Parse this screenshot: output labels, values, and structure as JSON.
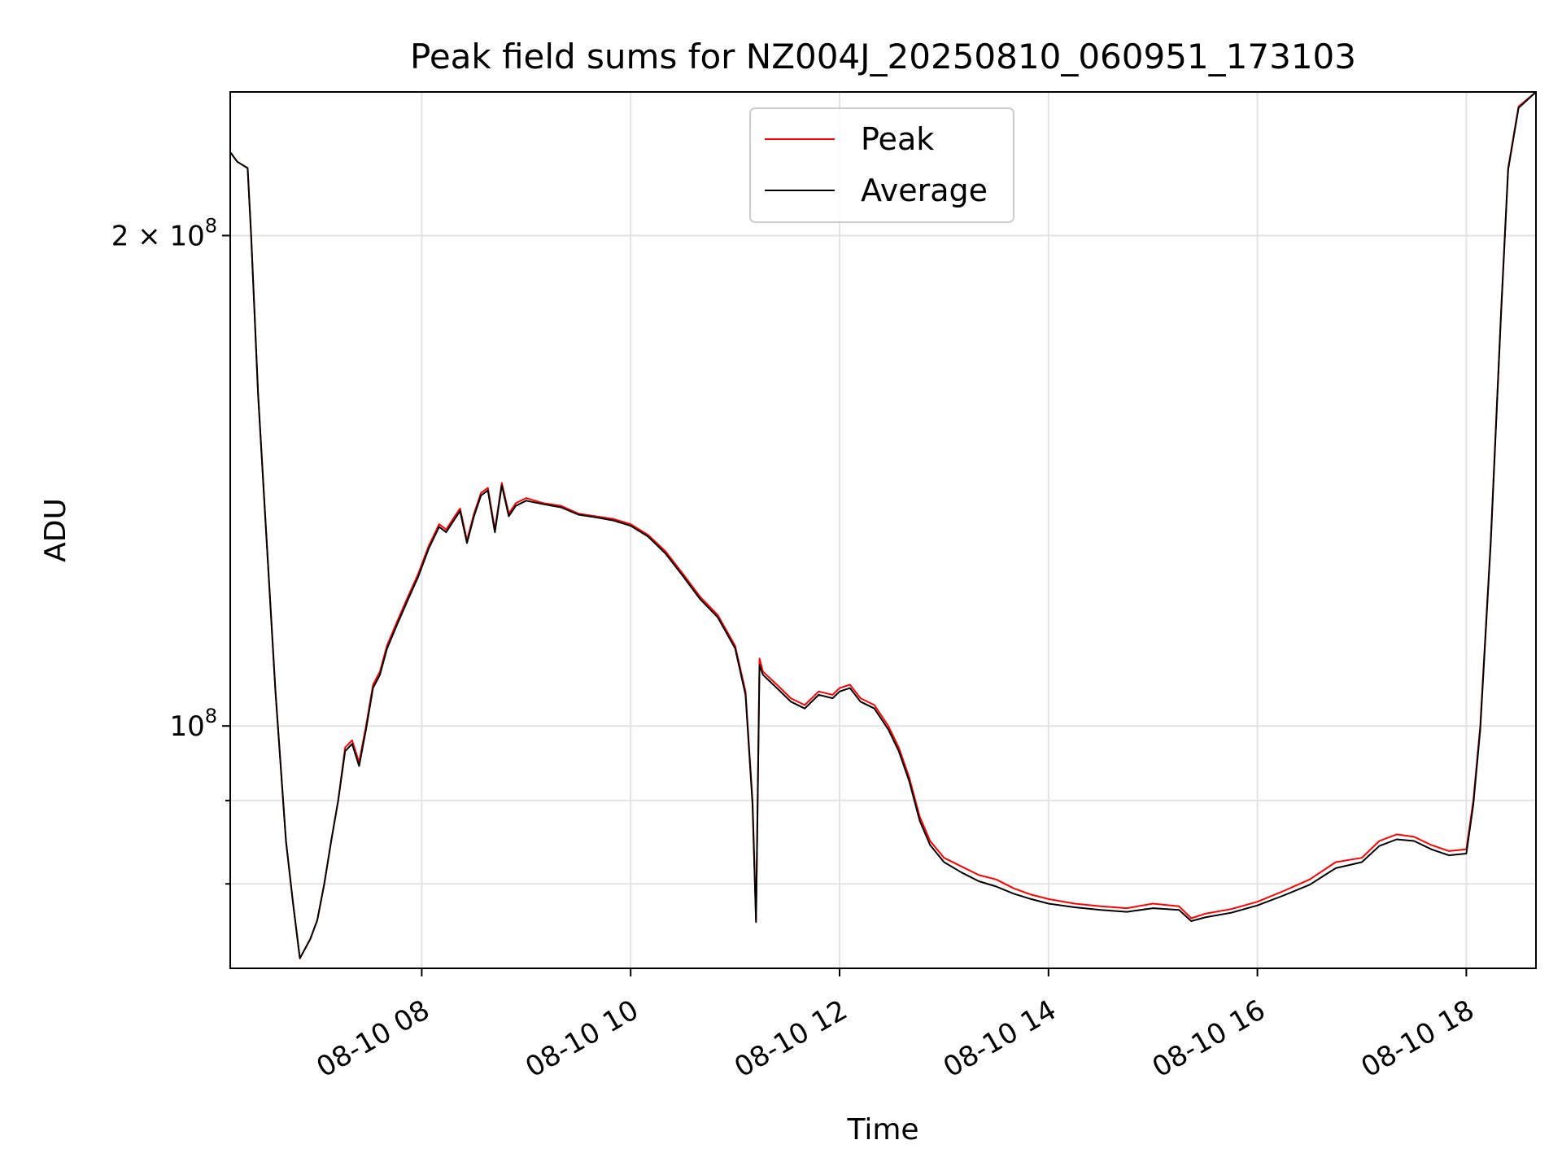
{
  "chart_data": {
    "type": "line",
    "title": "Peak field sums for NZ004J_20250810_060951_173103",
    "xlabel": "Time",
    "ylabel": "ADU",
    "x_scale": "time",
    "y_scale": "log",
    "xlim": [
      "08-10 06:10",
      "08-10 18:40"
    ],
    "ylim": [
      71000000,
      245000000
    ],
    "grid": true,
    "legend_position": "upper-center",
    "x_ticks": [
      "08-10 08",
      "08-10 10",
      "08-10 12",
      "08-10 14",
      "08-10 16",
      "08-10 18"
    ],
    "x_tick_values": [
      "08-10 08:00",
      "08-10 10:00",
      "08-10 12:00",
      "08-10 14:00",
      "08-10 16:00",
      "08-10 18:00"
    ],
    "y_ticks": [
      {
        "value": 100000000,
        "base": "10",
        "exp": "8",
        "prefix": ""
      },
      {
        "value": 200000000,
        "base": "10",
        "exp": "8",
        "prefix": "2 × "
      }
    ],
    "y_minor_ticks": [
      80000000,
      90000000
    ],
    "series": [
      {
        "name": "Peak",
        "color": "#ff0000",
        "points": [
          [
            "08-10 06:10",
            225000000
          ],
          [
            "08-10 06:14",
            222000000
          ],
          [
            "08-10 06:20",
            220000000
          ],
          [
            "08-10 06:22",
            200000000
          ],
          [
            "08-10 06:26",
            160000000
          ],
          [
            "08-10 06:30",
            135000000
          ],
          [
            "08-10 06:36",
            105000000
          ],
          [
            "08-10 06:42",
            85000000
          ],
          [
            "08-10 06:46",
            78000000
          ],
          [
            "08-10 06:50",
            72000000
          ],
          [
            "08-10 06:56",
            74000000
          ],
          [
            "08-10 07:00",
            76000000
          ],
          [
            "08-10 07:04",
            80000000
          ],
          [
            "08-10 07:08",
            85000000
          ],
          [
            "08-10 07:12",
            90000000
          ],
          [
            "08-10 07:16",
            97000000
          ],
          [
            "08-10 07:20",
            98000000
          ],
          [
            "08-10 07:24",
            95000000
          ],
          [
            "08-10 07:28",
            100000000
          ],
          [
            "08-10 07:32",
            106000000
          ],
          [
            "08-10 07:36",
            108000000
          ],
          [
            "08-10 07:40",
            112000000
          ],
          [
            "08-10 07:46",
            116000000
          ],
          [
            "08-10 07:52",
            120000000
          ],
          [
            "08-10 07:58",
            124000000
          ],
          [
            "08-10 08:04",
            129000000
          ],
          [
            "08-10 08:10",
            133000000
          ],
          [
            "08-10 08:14",
            132000000
          ],
          [
            "08-10 08:18",
            134000000
          ],
          [
            "08-10 08:22",
            136000000
          ],
          [
            "08-10 08:26",
            130000000
          ],
          [
            "08-10 08:30",
            135000000
          ],
          [
            "08-10 08:34",
            139000000
          ],
          [
            "08-10 08:38",
            140000000
          ],
          [
            "08-10 08:42",
            132000000
          ],
          [
            "08-10 08:46",
            141000000
          ],
          [
            "08-10 08:50",
            135000000
          ],
          [
            "08-10 08:54",
            137000000
          ],
          [
            "08-10 09:00",
            138000000
          ],
          [
            "08-10 09:10",
            137000000
          ],
          [
            "08-10 09:20",
            136500000
          ],
          [
            "08-10 09:30",
            135000000
          ],
          [
            "08-10 09:40",
            134500000
          ],
          [
            "08-10 09:50",
            134000000
          ],
          [
            "08-10 10:00",
            133000000
          ],
          [
            "08-10 10:10",
            131000000
          ],
          [
            "08-10 10:20",
            128000000
          ],
          [
            "08-10 10:30",
            124000000
          ],
          [
            "08-10 10:40",
            120000000
          ],
          [
            "08-10 10:50",
            117000000
          ],
          [
            "08-10 11:00",
            112000000
          ],
          [
            "08-10 11:06",
            105000000
          ],
          [
            "08-10 11:10",
            90000000
          ],
          [
            "08-10 11:12",
            76000000
          ],
          [
            "08-10 11:14",
            110000000
          ],
          [
            "08-10 11:16",
            108000000
          ],
          [
            "08-10 11:24",
            106000000
          ],
          [
            "08-10 11:32",
            104000000
          ],
          [
            "08-10 11:40",
            103000000
          ],
          [
            "08-10 11:48",
            105000000
          ],
          [
            "08-10 11:56",
            104500000
          ],
          [
            "08-10 12:00",
            105500000
          ],
          [
            "08-10 12:06",
            106000000
          ],
          [
            "08-10 12:12",
            104000000
          ],
          [
            "08-10 12:20",
            103000000
          ],
          [
            "08-10 12:28",
            100000000
          ],
          [
            "08-10 12:34",
            97000000
          ],
          [
            "08-10 12:40",
            93000000
          ],
          [
            "08-10 12:46",
            88000000
          ],
          [
            "08-10 12:52",
            85000000
          ],
          [
            "08-10 13:00",
            83000000
          ],
          [
            "08-10 13:10",
            82000000
          ],
          [
            "08-10 13:20",
            81000000
          ],
          [
            "08-10 13:30",
            80500000
          ],
          [
            "08-10 13:40",
            79500000
          ],
          [
            "08-10 13:50",
            78800000
          ],
          [
            "08-10 14:00",
            78300000
          ],
          [
            "08-10 14:15",
            77800000
          ],
          [
            "08-10 14:30",
            77500000
          ],
          [
            "08-10 14:45",
            77300000
          ],
          [
            "08-10 15:00",
            77800000
          ],
          [
            "08-10 15:15",
            77500000
          ],
          [
            "08-10 15:22",
            76200000
          ],
          [
            "08-10 15:30",
            76700000
          ],
          [
            "08-10 15:45",
            77200000
          ],
          [
            "08-10 16:00",
            78000000
          ],
          [
            "08-10 16:15",
            79200000
          ],
          [
            "08-10 16:30",
            80500000
          ],
          [
            "08-10 16:45",
            82500000
          ],
          [
            "08-10 17:00",
            83000000
          ],
          [
            "08-10 17:10",
            85000000
          ],
          [
            "08-10 17:20",
            85800000
          ],
          [
            "08-10 17:30",
            85500000
          ],
          [
            "08-10 17:40",
            84500000
          ],
          [
            "08-10 17:50",
            83800000
          ],
          [
            "08-10 18:00",
            84000000
          ],
          [
            "08-10 18:04",
            90000000
          ],
          [
            "08-10 18:08",
            100000000
          ],
          [
            "08-10 18:14",
            130000000
          ],
          [
            "08-10 18:20",
            180000000
          ],
          [
            "08-10 18:24",
            220000000
          ],
          [
            "08-10 18:30",
            240000000
          ],
          [
            "08-10 18:40",
            245000000
          ]
        ]
      },
      {
        "name": "Average",
        "color": "#000000",
        "points": [
          [
            "08-10 06:10",
            225000000
          ],
          [
            "08-10 06:14",
            222000000
          ],
          [
            "08-10 06:20",
            220000000
          ],
          [
            "08-10 06:22",
            200000000
          ],
          [
            "08-10 06:26",
            160000000
          ],
          [
            "08-10 06:30",
            135000000
          ],
          [
            "08-10 06:36",
            105000000
          ],
          [
            "08-10 06:42",
            85000000
          ],
          [
            "08-10 06:46",
            78000000
          ],
          [
            "08-10 06:50",
            72000000
          ],
          [
            "08-10 06:56",
            74000000
          ],
          [
            "08-10 07:00",
            76000000
          ],
          [
            "08-10 07:04",
            80000000
          ],
          [
            "08-10 07:08",
            85000000
          ],
          [
            "08-10 07:12",
            90000000
          ],
          [
            "08-10 07:16",
            96500000
          ],
          [
            "08-10 07:20",
            97500000
          ],
          [
            "08-10 07:24",
            94500000
          ],
          [
            "08-10 07:28",
            99500000
          ],
          [
            "08-10 07:32",
            105500000
          ],
          [
            "08-10 07:36",
            107500000
          ],
          [
            "08-10 07:40",
            111500000
          ],
          [
            "08-10 07:46",
            115500000
          ],
          [
            "08-10 07:52",
            119500000
          ],
          [
            "08-10 07:58",
            123500000
          ],
          [
            "08-10 08:04",
            128500000
          ],
          [
            "08-10 08:10",
            132500000
          ],
          [
            "08-10 08:14",
            131500000
          ],
          [
            "08-10 08:18",
            133500000
          ],
          [
            "08-10 08:22",
            135500000
          ],
          [
            "08-10 08:26",
            129500000
          ],
          [
            "08-10 08:30",
            134500000
          ],
          [
            "08-10 08:34",
            138500000
          ],
          [
            "08-10 08:38",
            139500000
          ],
          [
            "08-10 08:42",
            131500000
          ],
          [
            "08-10 08:46",
            140500000
          ],
          [
            "08-10 08:50",
            134500000
          ],
          [
            "08-10 08:54",
            136500000
          ],
          [
            "08-10 09:00",
            137500000
          ],
          [
            "08-10 09:10",
            136800000
          ],
          [
            "08-10 09:20",
            136200000
          ],
          [
            "08-10 09:30",
            134800000
          ],
          [
            "08-10 09:40",
            134300000
          ],
          [
            "08-10 09:50",
            133700000
          ],
          [
            "08-10 10:00",
            132700000
          ],
          [
            "08-10 10:10",
            130700000
          ],
          [
            "08-10 10:20",
            127600000
          ],
          [
            "08-10 10:30",
            123600000
          ],
          [
            "08-10 10:40",
            119600000
          ],
          [
            "08-10 10:50",
            116600000
          ],
          [
            "08-10 11:00",
            111600000
          ],
          [
            "08-10 11:06",
            104500000
          ],
          [
            "08-10 11:10",
            89500000
          ],
          [
            "08-10 11:12",
            75800000
          ],
          [
            "08-10 11:14",
            109000000
          ],
          [
            "08-10 11:16",
            107500000
          ],
          [
            "08-10 11:24",
            105500000
          ],
          [
            "08-10 11:32",
            103500000
          ],
          [
            "08-10 11:40",
            102500000
          ],
          [
            "08-10 11:48",
            104500000
          ],
          [
            "08-10 11:56",
            104000000
          ],
          [
            "08-10 12:00",
            105000000
          ],
          [
            "08-10 12:06",
            105500000
          ],
          [
            "08-10 12:12",
            103500000
          ],
          [
            "08-10 12:20",
            102500000
          ],
          [
            "08-10 12:28",
            99500000
          ],
          [
            "08-10 12:34",
            96500000
          ],
          [
            "08-10 12:40",
            92500000
          ],
          [
            "08-10 12:46",
            87500000
          ],
          [
            "08-10 12:52",
            84500000
          ],
          [
            "08-10 13:00",
            82500000
          ],
          [
            "08-10 13:10",
            81300000
          ],
          [
            "08-10 13:20",
            80300000
          ],
          [
            "08-10 13:30",
            79700000
          ],
          [
            "08-10 13:40",
            78900000
          ],
          [
            "08-10 13:50",
            78300000
          ],
          [
            "08-10 14:00",
            77800000
          ],
          [
            "08-10 14:15",
            77400000
          ],
          [
            "08-10 14:30",
            77100000
          ],
          [
            "08-10 14:45",
            76900000
          ],
          [
            "08-10 15:00",
            77300000
          ],
          [
            "08-10 15:15",
            77100000
          ],
          [
            "08-10 15:22",
            75900000
          ],
          [
            "08-10 15:30",
            76300000
          ],
          [
            "08-10 15:45",
            76800000
          ],
          [
            "08-10 16:00",
            77600000
          ],
          [
            "08-10 16:15",
            78700000
          ],
          [
            "08-10 16:30",
            79900000
          ],
          [
            "08-10 16:45",
            81800000
          ],
          [
            "08-10 17:00",
            82500000
          ],
          [
            "08-10 17:10",
            84400000
          ],
          [
            "08-10 17:20",
            85200000
          ],
          [
            "08-10 17:30",
            85000000
          ],
          [
            "08-10 17:40",
            84000000
          ],
          [
            "08-10 17:50",
            83300000
          ],
          [
            "08-10 18:00",
            83500000
          ],
          [
            "08-10 18:04",
            89500000
          ],
          [
            "08-10 18:08",
            99500000
          ],
          [
            "08-10 18:14",
            129500000
          ],
          [
            "08-10 18:20",
            179500000
          ],
          [
            "08-10 18:24",
            219500000
          ],
          [
            "08-10 18:30",
            239500000
          ],
          [
            "08-10 18:40",
            245000000
          ]
        ]
      }
    ]
  }
}
